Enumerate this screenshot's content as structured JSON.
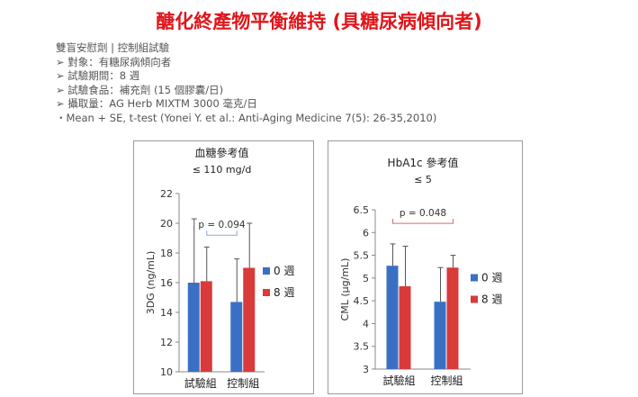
{
  "title": "醣化終產物平衡維持 (具糖尿病傾向者)",
  "notes": [
    "雙盲安慰劑 | 控制組試驗",
    "➢ 對象：有糖尿病傾向者",
    "➢ 試驗期間：8 週",
    "➢ 試驗食品：補充劑 (15 個膠囊/日)",
    "➢ 攝取量：AG Herb MIXTM 3000 毫克/日",
    "・Mean + SE, t-test (Yonei Y. et al.: Anti-Aging Medicine 7(5): 26-35,2010)"
  ],
  "colors": {
    "week0": "#3a70c4",
    "week8": "#d93a3a",
    "bracket": "#8aa8d8",
    "bracket2": "#d96a6a"
  },
  "chart_data": [
    {
      "type": "bar",
      "title": "血糖參考值",
      "subtitle": "≤ 110 mg/d",
      "ylabel": "3DG (ng/mL)",
      "ylim": [
        10,
        22
      ],
      "yticks": [
        10,
        12,
        14,
        16,
        18,
        20,
        22
      ],
      "categories": [
        "試驗組",
        "控制組"
      ],
      "series": [
        {
          "name": "0 週",
          "values": [
            16.0,
            14.7
          ],
          "errors": [
            4.3,
            2.9
          ]
        },
        {
          "name": "8 週",
          "values": [
            16.1,
            17.0
          ],
          "errors": [
            2.3,
            3.0
          ]
        }
      ],
      "annotation": {
        "text": "p = 0.094",
        "from": [
          0,
          1
        ],
        "to": [
          1,
          0
        ],
        "y": 19.2
      }
    },
    {
      "type": "bar",
      "title": "HbA1c 參考值",
      "subtitle": "≤ 5",
      "ylabel": "CML (μg/mL)",
      "ylim": [
        3,
        6.5
      ],
      "yticks": [
        3,
        3.5,
        4,
        4.5,
        5,
        5.5,
        6,
        6.5
      ],
      "categories": [
        "試驗組",
        "控制組"
      ],
      "series": [
        {
          "name": "0 週",
          "values": [
            5.27,
            4.48
          ],
          "errors": [
            0.48,
            0.75
          ]
        },
        {
          "name": "8 週",
          "values": [
            4.82,
            5.23
          ],
          "errors": [
            0.88,
            0.27
          ]
        }
      ],
      "annotation": {
        "text": "p = 0.048",
        "from": [
          0,
          0
        ],
        "to": [
          1,
          1
        ],
        "y": 6.2
      }
    }
  ]
}
